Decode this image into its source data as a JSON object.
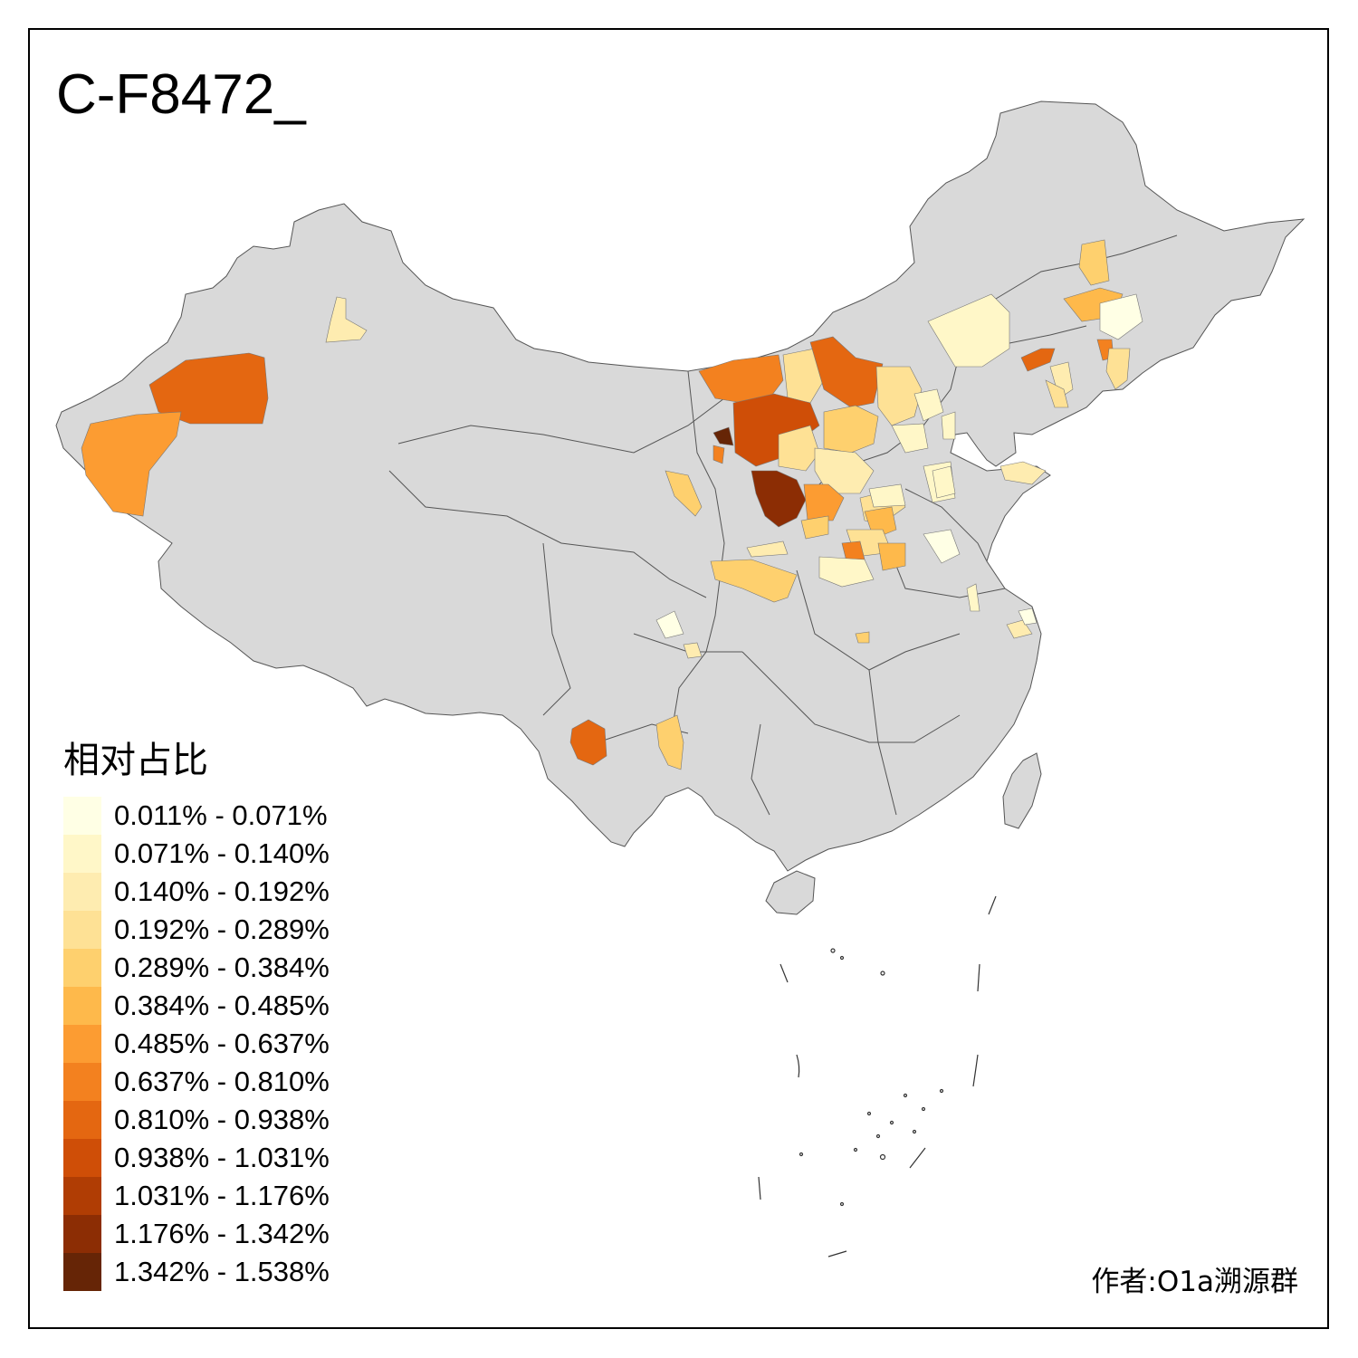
{
  "title": "C-F8472_",
  "legend": {
    "title": "相对占比",
    "items": [
      {
        "label": "0.011% - 0.071%",
        "color": "#FFFFE5"
      },
      {
        "label": "0.071% - 0.140%",
        "color": "#FFF7C8"
      },
      {
        "label": "0.140% - 0.192%",
        "color": "#FEECB0"
      },
      {
        "label": "0.192% - 0.289%",
        "color": "#FEE195"
      },
      {
        "label": "0.289% - 0.384%",
        "color": "#FED06E"
      },
      {
        "label": "0.384% - 0.485%",
        "color": "#FEB94B"
      },
      {
        "label": "0.485% - 0.637%",
        "color": "#FC9C32"
      },
      {
        "label": "0.637% - 0.810%",
        "color": "#F3811F"
      },
      {
        "label": "0.810% - 0.938%",
        "color": "#E46711"
      },
      {
        "label": "0.938% - 1.031%",
        "color": "#CF4E07"
      },
      {
        "label": "1.031% - 1.176%",
        "color": "#B03D04"
      },
      {
        "label": "1.176% - 1.342%",
        "color": "#8C2D04"
      },
      {
        "label": "1.342% - 1.538%",
        "color": "#662506"
      }
    ]
  },
  "author": "作者:O1a溯源群",
  "colors": {
    "land": "#D9D9D9",
    "border": "#555555",
    "background": "#FFFFFF"
  }
}
